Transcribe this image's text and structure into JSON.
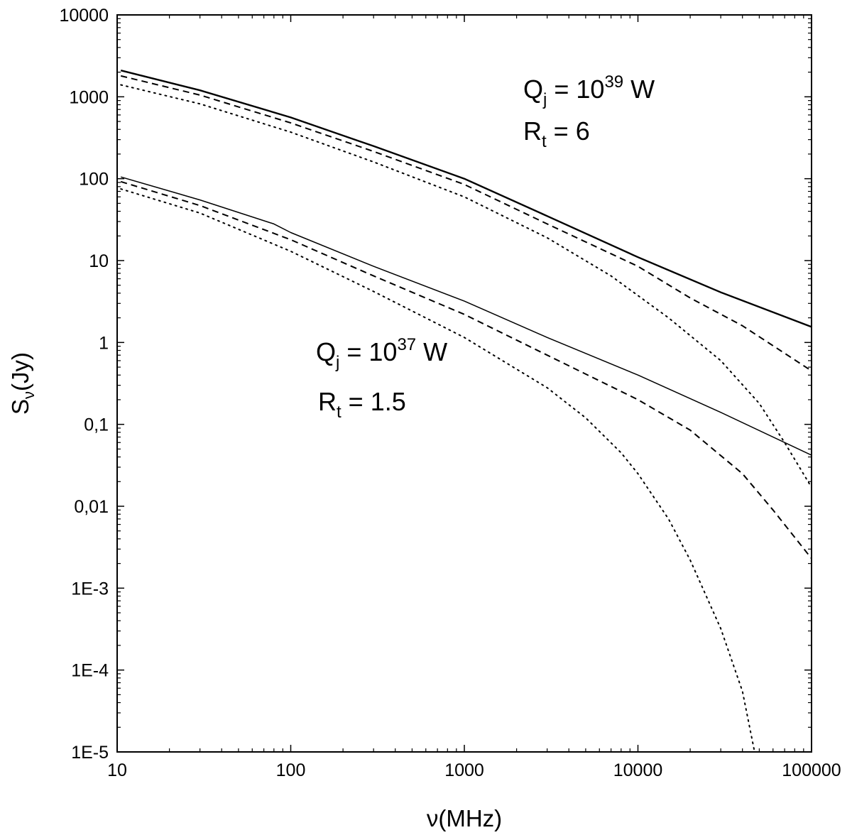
{
  "chart_data": {
    "type": "line",
    "xscale": "log",
    "yscale": "log",
    "xlim": [
      10,
      100000
    ],
    "ylim": [
      1e-05,
      10000
    ],
    "grid": false,
    "x_ticks": [
      {
        "value": 10,
        "label": "10"
      },
      {
        "value": 100,
        "label": "100"
      },
      {
        "value": 1000,
        "label": "1000"
      },
      {
        "value": 10000,
        "label": "10000"
      },
      {
        "value": 100000,
        "label": "100000"
      }
    ],
    "y_ticks": [
      {
        "value": 10000,
        "label": "10000"
      },
      {
        "value": 1000,
        "label": "1000"
      },
      {
        "value": 100,
        "label": "100"
      },
      {
        "value": 10,
        "label": "10"
      },
      {
        "value": 1,
        "label": "1"
      },
      {
        "value": 0.1,
        "label": "0,1"
      },
      {
        "value": 0.01,
        "label": "0,01"
      },
      {
        "value": 0.001,
        "label": "1E-3"
      },
      {
        "value": 0.0001,
        "label": "1E-4"
      },
      {
        "value": 1e-05,
        "label": "1E-5"
      }
    ],
    "xlabel": {
      "symbol": "ν",
      "rest": "(MHz)"
    },
    "ylabel": {
      "main": "S",
      "sub": "ν",
      "rest": "(Jy)"
    },
    "annotations": [
      {
        "group": "upper",
        "q_prefix": "Q",
        "q_sub": "j",
        "q_mid": " = 10",
        "q_exp": "39",
        "q_unit": " W",
        "r_prefix": "R",
        "r_sub": "t",
        "r_rest": " = 6"
      },
      {
        "group": "lower",
        "q_prefix": "Q",
        "q_sub": "j",
        "q_mid": " = 10",
        "q_exp": "37",
        "q_unit": " W",
        "r_prefix": "R",
        "r_sub": "t",
        "r_rest": " = 1.5"
      }
    ],
    "series": [
      {
        "group": "upper",
        "style": "solid",
        "points": [
          [
            10.5,
            2100
          ],
          [
            30,
            1200
          ],
          [
            100,
            560
          ],
          [
            300,
            250
          ],
          [
            1000,
            100
          ],
          [
            3000,
            35
          ],
          [
            10000,
            11
          ],
          [
            30000,
            4.1
          ],
          [
            100000,
            1.55
          ]
        ]
      },
      {
        "group": "upper",
        "style": "dashed",
        "points": [
          [
            10.5,
            1800
          ],
          [
            30,
            1050
          ],
          [
            100,
            480
          ],
          [
            300,
            215
          ],
          [
            1000,
            85
          ],
          [
            3000,
            28
          ],
          [
            10000,
            8.5
          ],
          [
            20000,
            3.5
          ],
          [
            40000,
            1.6
          ],
          [
            100000,
            0.45
          ]
        ]
      },
      {
        "group": "upper",
        "style": "dotted",
        "points": [
          [
            10.5,
            1400
          ],
          [
            30,
            820
          ],
          [
            100,
            370
          ],
          [
            300,
            160
          ],
          [
            1000,
            60
          ],
          [
            3000,
            19
          ],
          [
            7000,
            6.5
          ],
          [
            15000,
            2
          ],
          [
            30000,
            0.6
          ],
          [
            50000,
            0.18
          ],
          [
            70000,
            0.06
          ],
          [
            100000,
            0.017
          ]
        ]
      },
      {
        "group": "lower",
        "style": "solid",
        "points": [
          [
            10.5,
            105
          ],
          [
            30,
            55
          ],
          [
            80,
            28
          ],
          [
            100,
            22
          ],
          [
            300,
            8.5
          ],
          [
            1000,
            3.2
          ],
          [
            3000,
            1.15
          ],
          [
            10000,
            0.4
          ],
          [
            30000,
            0.14
          ],
          [
            100000,
            0.042
          ]
        ]
      },
      {
        "group": "lower",
        "style": "dashed",
        "points": [
          [
            10.5,
            92
          ],
          [
            30,
            47
          ],
          [
            100,
            18
          ],
          [
            300,
            6.5
          ],
          [
            1000,
            2.2
          ],
          [
            3000,
            0.7
          ],
          [
            10000,
            0.2
          ],
          [
            20000,
            0.085
          ],
          [
            40000,
            0.025
          ],
          [
            60000,
            0.009
          ],
          [
            100000,
            0.0023
          ]
        ]
      },
      {
        "group": "lower",
        "style": "dotted",
        "points": [
          [
            10.5,
            75
          ],
          [
            30,
            38
          ],
          [
            100,
            13
          ],
          [
            300,
            4.2
          ],
          [
            1000,
            1.15
          ],
          [
            3000,
            0.28
          ],
          [
            5000,
            0.12
          ],
          [
            8000,
            0.045
          ],
          [
            10000,
            0.025
          ],
          [
            15000,
            0.007
          ],
          [
            20000,
            0.0022
          ],
          [
            30000,
            0.00032
          ],
          [
            40000,
            5.5e-05
          ],
          [
            47000,
            1e-05
          ]
        ]
      }
    ]
  }
}
